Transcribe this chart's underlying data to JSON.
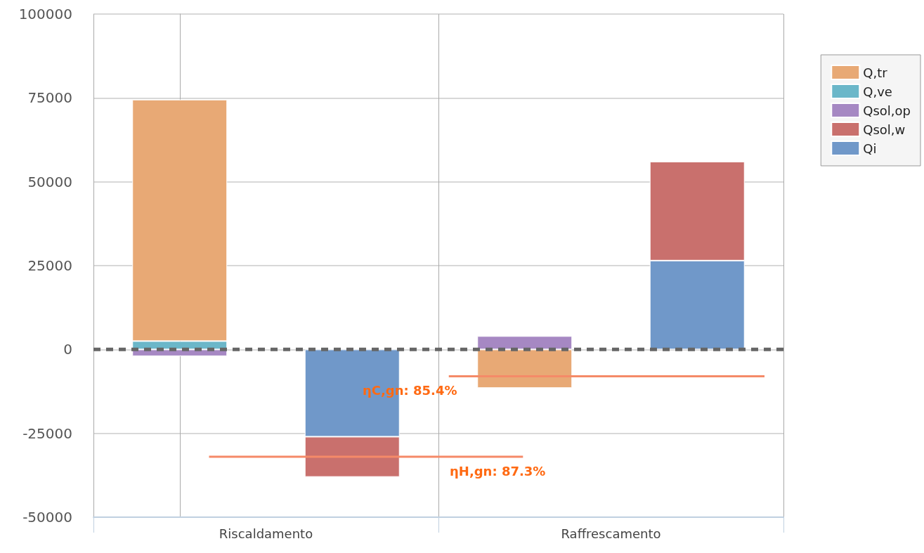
{
  "chart_data": {
    "type": "bar",
    "stacked": true,
    "categories": [
      "Riscaldamento",
      null,
      "Raffrescamento",
      null
    ],
    "series": [
      {
        "name": "Qi",
        "color": "#7098c9",
        "values": [
          null,
          -26000,
          null,
          26500
        ]
      },
      {
        "name": "Qsol,w",
        "color": "#c9706d",
        "values": [
          null,
          -12000,
          null,
          29500
        ]
      },
      {
        "name": "Qsol,op",
        "color": "#a688c3",
        "values": [
          -2000,
          null,
          4000,
          null
        ]
      },
      {
        "name": "Q,ve",
        "color": "#6bb7c9",
        "values": [
          2500,
          null,
          null,
          null
        ]
      },
      {
        "name": "Q,tr",
        "color": "#e8a975",
        "values": [
          72000,
          null,
          -11500,
          null
        ]
      }
    ],
    "ylim": [
      -50000,
      100000
    ],
    "yticks": [
      -50000,
      -25000,
      0,
      25000,
      50000,
      75000,
      100000
    ],
    "grid": true,
    "legend": "right",
    "ref_lines": [
      {
        "axis": "y",
        "value": 0,
        "color": "#666666",
        "line_style": "dashed"
      },
      {
        "axis": "y",
        "value": -32000,
        "color": "#f58a68"
      },
      {
        "axis": "y",
        "value": -8000,
        "color": "#f58a68"
      }
    ],
    "annotations": [
      "ηH,gn: 87.3%",
      "ηC,gn: 85.4%"
    ]
  }
}
